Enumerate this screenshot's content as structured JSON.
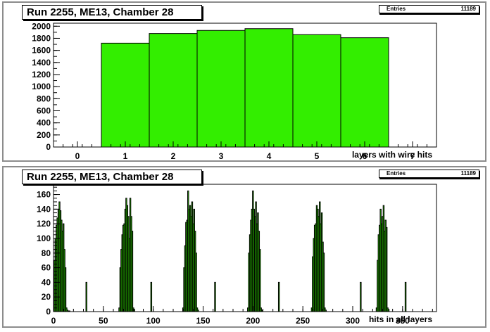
{
  "chart_data": [
    {
      "type": "bar",
      "title": "Run 2255, ME13, Chamber 28",
      "stats": {
        "label": "Entries",
        "value": "11189"
      },
      "xlabel": "layers with wire hits",
      "ylabel": "",
      "xlim": [
        -0.5,
        7.5
      ],
      "ylim": [
        0,
        2050
      ],
      "xticks": [
        "0",
        "1",
        "2",
        "3",
        "4",
        "5",
        "6",
        "7"
      ],
      "yticks": [
        "0",
        "200",
        "400",
        "600",
        "800",
        "1000",
        "1200",
        "1400",
        "1600",
        "1800",
        "2000"
      ],
      "categories": [
        1,
        2,
        3,
        4,
        5,
        6
      ],
      "values": [
        1720,
        1880,
        1930,
        1960,
        1860,
        1810
      ],
      "color": "#33ee00",
      "grid": false
    },
    {
      "type": "bar",
      "title": "Run 2255, ME13, Chamber 28",
      "stats": {
        "label": "Entries",
        "value": "11189"
      },
      "xlabel": "hits in all layers",
      "ylabel": "",
      "xlim": [
        0,
        384
      ],
      "ylim": [
        0,
        174
      ],
      "xticks": [
        "0",
        "50",
        "100",
        "150",
        "200",
        "250",
        "300",
        "350"
      ],
      "yticks": [
        "0",
        "20",
        "40",
        "60",
        "80",
        "100",
        "120",
        "140",
        "160"
      ],
      "x": [
        1,
        2,
        3,
        4,
        5,
        6,
        7,
        8,
        9,
        10,
        11,
        12,
        13,
        14,
        15,
        16,
        33,
        66,
        67,
        68,
        69,
        70,
        71,
        72,
        73,
        74,
        75,
        76,
        77,
        78,
        79,
        80,
        81,
        98,
        130,
        131,
        132,
        133,
        134,
        135,
        136,
        137,
        138,
        139,
        140,
        141,
        142,
        143,
        144,
        145,
        162,
        195,
        196,
        197,
        198,
        199,
        200,
        201,
        202,
        203,
        204,
        205,
        206,
        207,
        208,
        209,
        226,
        259,
        260,
        261,
        262,
        263,
        264,
        265,
        266,
        267,
        268,
        269,
        270,
        271,
        272,
        273,
        308,
        324,
        325,
        326,
        327,
        328,
        329,
        330,
        331,
        332,
        333,
        334,
        335,
        336,
        353
      ],
      "values": [
        70,
        100,
        118,
        128,
        140,
        150,
        138,
        125,
        110,
        120,
        85,
        60,
        5,
        2,
        1,
        1,
        40,
        5,
        60,
        85,
        105,
        118,
        120,
        140,
        155,
        145,
        130,
        100,
        155,
        130,
        110,
        5,
        3,
        40,
        5,
        60,
        90,
        122,
        125,
        165,
        140,
        145,
        130,
        150,
        120,
        140,
        110,
        80,
        5,
        2,
        40,
        5,
        80,
        105,
        125,
        140,
        165,
        140,
        130,
        150,
        120,
        135,
        110,
        85,
        5,
        2,
        40,
        5,
        75,
        100,
        118,
        120,
        145,
        140,
        130,
        150,
        120,
        135,
        95,
        80,
        5,
        2,
        40,
        5,
        70,
        105,
        118,
        140,
        120,
        130,
        145,
        110,
        125,
        115,
        5,
        3,
        40
      ],
      "color": "#33ee00",
      "grid": false
    }
  ]
}
